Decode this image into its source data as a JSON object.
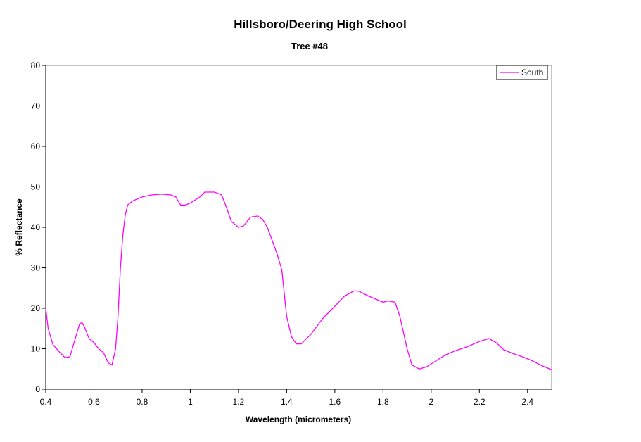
{
  "chart_data": {
    "type": "line",
    "title": "Hillsboro/Deering High School",
    "subtitle": "Tree #48",
    "x_label": "Wavelength (micrometers)",
    "y_label": "% Reflectance",
    "x": [
      0.4,
      0.41,
      0.43,
      0.46,
      0.48,
      0.5,
      0.52,
      0.54,
      0.55,
      0.56,
      0.58,
      0.6,
      0.62,
      0.64,
      0.66,
      0.675,
      0.69,
      0.7,
      0.71,
      0.72,
      0.73,
      0.74,
      0.76,
      0.8,
      0.84,
      0.88,
      0.92,
      0.94,
      0.96,
      0.98,
      1.0,
      1.04,
      1.06,
      1.1,
      1.13,
      1.15,
      1.17,
      1.2,
      1.22,
      1.25,
      1.28,
      1.3,
      1.32,
      1.36,
      1.38,
      1.4,
      1.42,
      1.44,
      1.46,
      1.5,
      1.55,
      1.6,
      1.64,
      1.68,
      1.7,
      1.74,
      1.78,
      1.8,
      1.82,
      1.85,
      1.87,
      1.9,
      1.92,
      1.95,
      1.98,
      2.02,
      2.06,
      2.1,
      2.15,
      2.2,
      2.24,
      2.27,
      2.3,
      2.34,
      2.38,
      2.42,
      2.46,
      2.5
    ],
    "series": [
      {
        "name": "South",
        "color": "#ff00ff",
        "values": [
          20,
          15,
          11,
          9,
          7.8,
          8,
          12,
          16,
          16.5,
          15.5,
          12.5,
          11.5,
          10,
          9,
          6.5,
          6,
          10,
          18,
          30,
          38,
          43,
          45.5,
          46.5,
          47.5,
          48,
          48.2,
          48,
          47.5,
          45.5,
          45.5,
          46,
          47.5,
          48.7,
          48.7,
          48,
          45,
          41.5,
          40,
          40.3,
          42.5,
          42.8,
          42,
          40,
          33.5,
          29.5,
          18,
          13,
          11.2,
          11.2,
          13.5,
          17.5,
          20.5,
          23,
          24.3,
          24.2,
          23,
          22,
          21.5,
          21.8,
          21.5,
          18,
          10,
          6,
          5,
          5.5,
          7,
          8.5,
          9.5,
          10.5,
          11.8,
          12.5,
          11.5,
          9.8,
          8.8,
          8,
          7,
          5.8,
          4.8
        ]
      }
    ],
    "xlim": [
      0.4,
      2.5
    ],
    "xticks": [
      0.4,
      0.6,
      0.8,
      1,
      1.2,
      1.4,
      1.6,
      1.8,
      2,
      2.2,
      2.4
    ],
    "ylim": [
      0,
      80
    ],
    "yticks": [
      0,
      10,
      20,
      30,
      40,
      50,
      60,
      70,
      80
    ],
    "legend": "top-right"
  }
}
